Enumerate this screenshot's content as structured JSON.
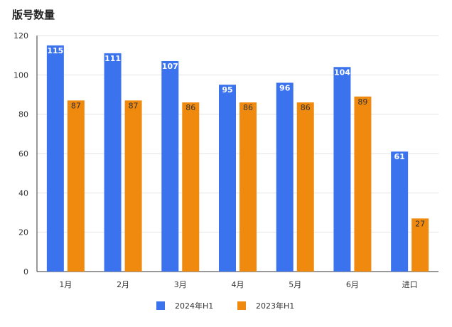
{
  "chart_data": {
    "type": "bar",
    "title": "版号数量",
    "categories": [
      "1月",
      "2月",
      "3月",
      "4月",
      "5月",
      "6月",
      "进口"
    ],
    "series": [
      {
        "name": "2024年H1",
        "color": "#3b73ee",
        "values": [
          115,
          111,
          107,
          95,
          96,
          104,
          61
        ]
      },
      {
        "name": "2023年H1",
        "color": "#f08a0e",
        "values": [
          87,
          87,
          86,
          86,
          86,
          89,
          27
        ]
      }
    ],
    "ylim": [
      0,
      120
    ],
    "yticks": [
      0,
      20,
      40,
      60,
      80,
      100,
      120
    ],
    "grid": true,
    "legend": "bottom"
  }
}
